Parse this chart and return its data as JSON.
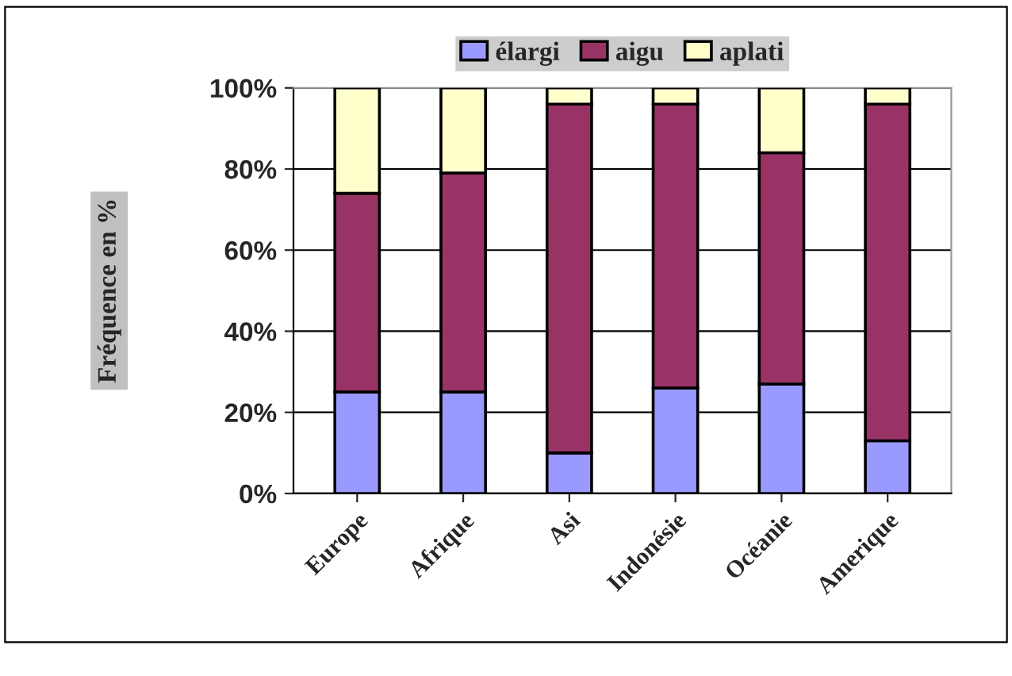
{
  "chart_data": {
    "type": "bar",
    "stacked": true,
    "ylabel": "Fréquence en %",
    "categories": [
      "Europe",
      "Afrique",
      "Asi",
      "Indonésie",
      "Océanie",
      "Amerique"
    ],
    "series": [
      {
        "name": "élargi",
        "color": "#9999ff",
        "values": [
          25,
          25,
          10,
          26,
          27,
          13
        ]
      },
      {
        "name": "aigu",
        "color": "#993366",
        "values": [
          49,
          54,
          86,
          70,
          57,
          83
        ]
      },
      {
        "name": "aplati",
        "color": "#ffffcc",
        "values": [
          26,
          21,
          4,
          4,
          16,
          4
        ]
      }
    ],
    "ylim": [
      0,
      100
    ],
    "yticks": [
      {
        "value": 0,
        "label": "0%"
      },
      {
        "value": 20,
        "label": "20%"
      },
      {
        "value": 40,
        "label": "40%"
      },
      {
        "value": 60,
        "label": "60%"
      },
      {
        "value": 80,
        "label": "80%"
      },
      {
        "value": 100,
        "label": "100%"
      }
    ],
    "grid": "y",
    "legend": "top"
  }
}
